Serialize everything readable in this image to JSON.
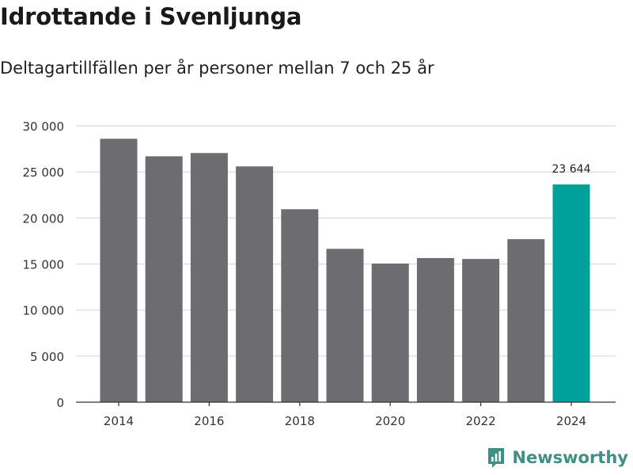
{
  "title": "Idrottande i Svenljunga",
  "subtitle": "Deltagartillfällen per år personer mellan 7 och 25 år",
  "brand": {
    "name": "Newsworthy",
    "icon": "newsworthy-logo-icon"
  },
  "colors": {
    "bar": "#6d6c71",
    "highlight": "#00a19a",
    "grid": "#d9d9d9",
    "brand": "#3f8f84"
  },
  "chart_data": {
    "type": "bar",
    "categories": [
      "2014",
      "2015",
      "2016",
      "2017",
      "2018",
      "2019",
      "2020",
      "2021",
      "2022",
      "2023",
      "2024"
    ],
    "values": [
      28600,
      26700,
      27050,
      25600,
      20950,
      16650,
      15050,
      15650,
      15550,
      17700,
      23644
    ],
    "highlight_index": 10,
    "data_labels": [
      {
        "index": 10,
        "text": "23 644"
      }
    ],
    "x_tick_labels": [
      "2014",
      "2016",
      "2018",
      "2020",
      "2022",
      "2024"
    ],
    "y_ticks": [
      0,
      5000,
      10000,
      15000,
      20000,
      25000,
      30000
    ],
    "y_tick_labels": [
      "0",
      "5 000",
      "10 000",
      "15 000",
      "20 000",
      "25 000",
      "30 000"
    ],
    "ylim": [
      0,
      30000
    ],
    "xlabel": "",
    "ylabel": "",
    "grid": true
  }
}
